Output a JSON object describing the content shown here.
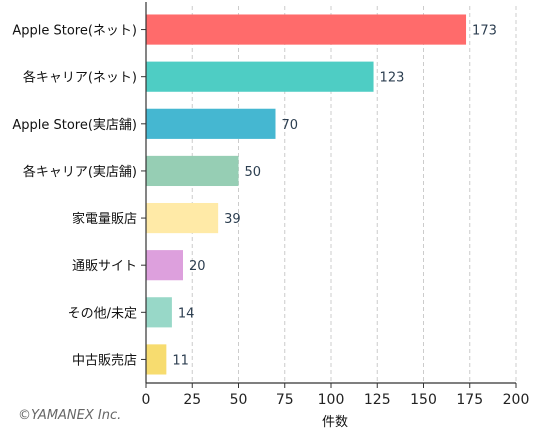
{
  "chart_data": {
    "type": "bar",
    "orientation": "horizontal",
    "categories": [
      "Apple Store(ネット)",
      "各キャリア(ネット)",
      "Apple Store(実店舗)",
      "各キャリア(実店舗)",
      "家電量販店",
      "通販サイト",
      "その他/未定",
      "中古販売店"
    ],
    "values": [
      173,
      123,
      70,
      50,
      39,
      20,
      14,
      11
    ],
    "colors": [
      "#ff6b6b",
      "#4ecdc4",
      "#45b7d1",
      "#96ceb4",
      "#ffeaa7",
      "#dda0dd",
      "#98d8c8",
      "#f7dc6f"
    ],
    "xlabel": "件数",
    "ylabel": "",
    "xlim": [
      0,
      200
    ],
    "xticks": [
      0,
      25,
      50,
      75,
      100,
      125,
      150,
      175,
      200
    ],
    "grid": "vertical-dashed",
    "data_labels": true
  },
  "copyright": "©YAMANEX Inc."
}
